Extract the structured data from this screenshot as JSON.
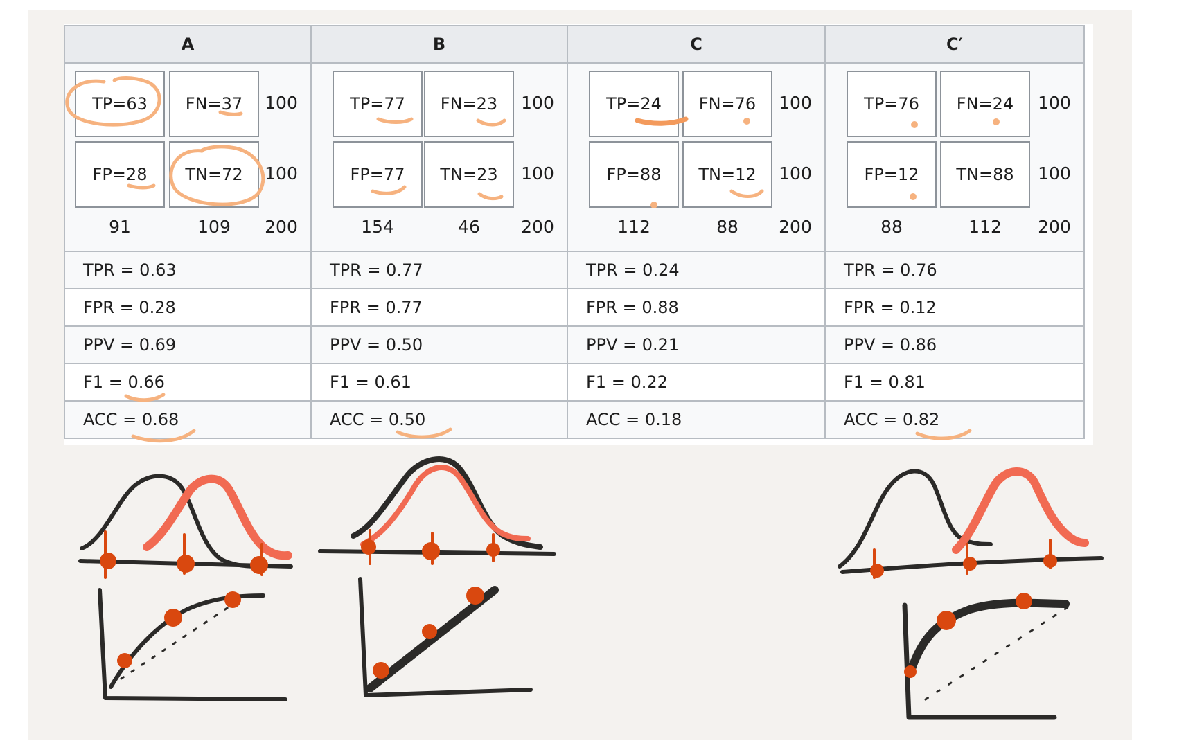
{
  "columns": [
    {
      "header": "A",
      "tp": "TP=63",
      "fn": "FN=37",
      "fp": "FP=28",
      "tn": "TN=72",
      "row_total_1": "100",
      "row_total_2": "100",
      "col_total_1": "91",
      "col_total_2": "109",
      "grand_total": "200",
      "metrics": [
        "TPR = 0.63",
        "FPR = 0.28",
        "PPV = 0.69",
        "F1 = 0.66",
        "ACC = 0.68"
      ]
    },
    {
      "header": "B",
      "tp": "TP=77",
      "fn": "FN=23",
      "fp": "FP=77",
      "tn": "TN=23",
      "row_total_1": "100",
      "row_total_2": "100",
      "col_total_1": "154",
      "col_total_2": "46",
      "grand_total": "200",
      "metrics": [
        "TPR = 0.77",
        "FPR = 0.77",
        "PPV = 0.50",
        "F1 = 0.61",
        "ACC = 0.50"
      ]
    },
    {
      "header": "C",
      "tp": "TP=24",
      "fn": "FN=76",
      "fp": "FP=88",
      "tn": "TN=12",
      "row_total_1": "100",
      "row_total_2": "100",
      "col_total_1": "112",
      "col_total_2": "88",
      "grand_total": "200",
      "metrics": [
        "TPR = 0.24",
        "FPR = 0.88",
        "PPV = 0.21",
        "F1 = 0.22",
        "ACC = 0.18"
      ]
    },
    {
      "header": "C′",
      "tp": "TP=76",
      "fn": "FN=24",
      "fp": "FP=12",
      "tn": "TN=88",
      "row_total_1": "100",
      "row_total_2": "100",
      "col_total_1": "88",
      "col_total_2": "112",
      "grand_total": "200",
      "metrics": [
        "TPR = 0.76",
        "FPR = 0.12",
        "PPV = 0.86",
        "F1 = 0.81",
        "ACC = 0.82"
      ]
    }
  ],
  "colors": {
    "ink": "#2b2a28",
    "red": "#f16a52",
    "dot": "#d9480f",
    "highlight": "#f6b27f",
    "border": "#b7bcc2"
  },
  "icons": [
    "distribution-sketch",
    "roc-curve-sketch"
  ]
}
